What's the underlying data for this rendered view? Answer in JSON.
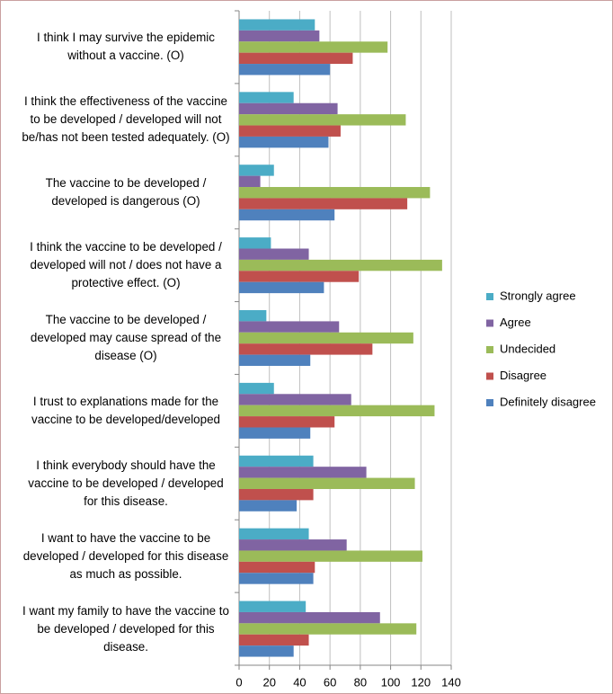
{
  "chart_data": {
    "type": "hbar",
    "categories": [
      "I think I may survive the epidemic without a vaccine. (O)",
      "I think the effectiveness of the vaccine to be developed / developed will not be/has not been tested adequately. (O)",
      "The vaccine to be developed / developed is dangerous (O)",
      "I think the vaccine to be developed / developed will not / does not have a protective effect. (O)",
      "The vaccine to be developed / developed may cause spread of the disease (O)",
      "I trust to explanations made for the vaccine to be developed/developed",
      "I think everybody should have the vaccine to be developed / developed for this disease.",
      "I want to have the vaccine to be developed / developed for this disease as much as possible.",
      "I want my family to have the vaccine to be developed / developed for this disease."
    ],
    "series": [
      {
        "name": "Strongly agree",
        "color": "#4bacc6",
        "values": [
          50,
          36,
          23,
          21,
          18,
          23,
          49,
          46,
          44
        ]
      },
      {
        "name": "Agree",
        "color": "#8064a2",
        "values": [
          53,
          65,
          14,
          46,
          66,
          74,
          84,
          71,
          93
        ]
      },
      {
        "name": "Undecided",
        "color": "#9bbb59",
        "values": [
          98,
          110,
          126,
          134,
          115,
          129,
          116,
          121,
          117
        ]
      },
      {
        "name": "Disagree",
        "color": "#c0504d",
        "values": [
          75,
          67,
          111,
          79,
          88,
          63,
          49,
          50,
          46
        ]
      },
      {
        "name": "Definitely disagree",
        "color": "#4f81bd",
        "values": [
          60,
          59,
          63,
          56,
          47,
          47,
          38,
          49,
          36
        ]
      }
    ],
    "xlim": [
      0,
      140
    ],
    "xticks": [
      0,
      20,
      40,
      60,
      80,
      100,
      120,
      140
    ],
    "grid": true,
    "legend": "right"
  }
}
